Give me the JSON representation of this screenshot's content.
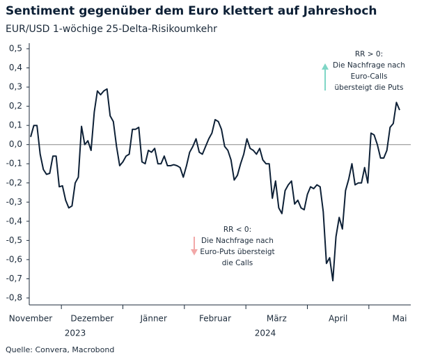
{
  "chart_data": {
    "type": "line",
    "title": "Sentiment gegenüber dem Euro klettert auf Jahreshoch",
    "subtitle": "EUR/USD 1-wöchige 25-Delta-Risikoumkehr",
    "source": "Quelle: Convera, Macrobond",
    "xtick_labels": [
      "November",
      "Dezember",
      "Jänner",
      "Februar",
      "März",
      "April",
      "Mai"
    ],
    "year_labels": [
      "2023",
      "2024"
    ],
    "annotations": [
      {
        "lines": [
          "RR > 0:",
          "Die Nachfrage nach",
          "Euro-Calls",
          "übersteigt die Puts"
        ],
        "color": "#7fd6c6"
      },
      {
        "lines": [
          "RR < 0:",
          "Die Nachfrage nach",
          "Euro-Puts übersteigt",
          "die Calls"
        ],
        "color": "#f2a8a8"
      }
    ],
    "ylim": [
      -0.8,
      0.5
    ],
    "yticks": [
      {
        "value": 0.5,
        "label": "0,5"
      },
      {
        "value": 0.4,
        "label": "0,4"
      },
      {
        "value": 0.3,
        "label": "0,3"
      },
      {
        "value": 0.2,
        "label": "0,2"
      },
      {
        "value": 0.1,
        "label": "0,1"
      },
      {
        "value": 0,
        "label": "0,0"
      },
      {
        "value": -0.1,
        "label": "-0,1"
      },
      {
        "value": -0.2,
        "label": "-0,2"
      },
      {
        "value": -0.3,
        "label": "-0,3"
      },
      {
        "value": -0.4,
        "label": "-0,4"
      },
      {
        "value": -0.5,
        "label": "-0,5"
      },
      {
        "value": -0.6,
        "label": "-0,6"
      },
      {
        "value": -0.7,
        "label": "-0,7"
      },
      {
        "value": -0.8,
        "label": "-0,8"
      }
    ],
    "color": "#0d2036",
    "values": [
      0.04,
      0.1,
      0.1,
      -0.05,
      -0.13,
      -0.155,
      -0.15,
      -0.06,
      -0.06,
      -0.22,
      -0.215,
      -0.29,
      -0.33,
      -0.32,
      -0.2,
      -0.17,
      0.095,
      0.0,
      0.02,
      -0.03,
      0.17,
      0.28,
      0.26,
      0.28,
      0.29,
      0.15,
      0.12,
      -0.01,
      -0.11,
      -0.09,
      -0.06,
      -0.05,
      0.08,
      0.08,
      0.09,
      -0.09,
      -0.1,
      -0.03,
      -0.04,
      -0.02,
      -0.1,
      -0.1,
      -0.06,
      -0.11,
      -0.11,
      -0.105,
      -0.11,
      -0.12,
      -0.17,
      -0.11,
      -0.04,
      -0.01,
      0.03,
      -0.04,
      -0.05,
      -0.01,
      0.03,
      0.06,
      0.13,
      0.12,
      0.08,
      -0.01,
      -0.03,
      -0.08,
      -0.185,
      -0.16,
      -0.1,
      -0.05,
      0.03,
      -0.02,
      -0.03,
      -0.05,
      -0.02,
      -0.08,
      -0.1,
      -0.1,
      -0.28,
      -0.19,
      -0.33,
      -0.36,
      -0.24,
      -0.21,
      -0.19,
      -0.31,
      -0.29,
      -0.33,
      -0.34,
      -0.26,
      -0.22,
      -0.23,
      -0.21,
      -0.22,
      -0.35,
      -0.62,
      -0.59,
      -0.71,
      -0.48,
      -0.38,
      -0.44,
      -0.24,
      -0.18,
      -0.1,
      -0.21,
      -0.2,
      -0.2,
      -0.12,
      -0.2,
      0.06,
      0.05,
      0.0,
      -0.07,
      -0.07,
      -0.03,
      0.09,
      0.11,
      0.22,
      0.18
    ]
  }
}
